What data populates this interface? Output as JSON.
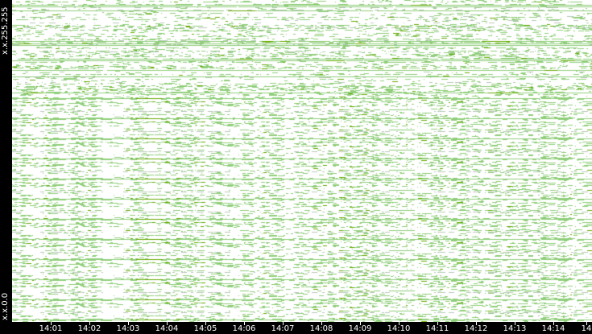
{
  "chart_data": {
    "type": "heatmap",
    "title": "",
    "xlabel": "",
    "ylabel": "",
    "x_ticks": [
      "14:01",
      "14:02",
      "14:03",
      "14:04",
      "14:05",
      "14:06",
      "14:07",
      "14:08",
      "14:09",
      "14:10",
      "14:11",
      "14:12",
      "14:13",
      "14:14",
      "14"
    ],
    "y_ticks": [
      "x.x.255.255",
      "x.x.0.0"
    ],
    "grid": false,
    "legend": "none",
    "colors": {
      "background": "#ffffff",
      "low": "#8fce7a",
      "high": "#66aa00",
      "axis": "#000000",
      "text": "#ffffff"
    }
  }
}
